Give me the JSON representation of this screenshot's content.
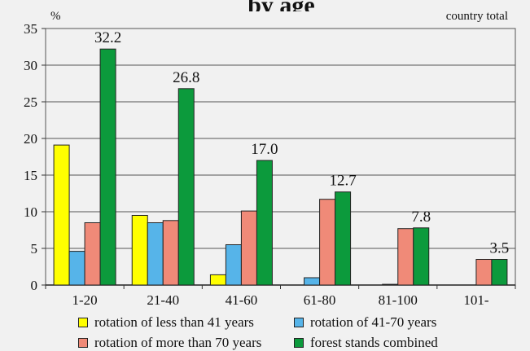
{
  "chart_data": {
    "type": "bar",
    "title_fragment": "by age",
    "y_unit": "%",
    "annotation": "country total",
    "categories": [
      "1-20",
      "21-40",
      "41-60",
      "61-80",
      "81-100",
      "101-"
    ],
    "ylim": [
      0,
      35
    ],
    "yticks": [
      0,
      5,
      10,
      15,
      20,
      25,
      30,
      35
    ],
    "grid": true,
    "legend_position": "bottom",
    "series": [
      {
        "name": "rotation of less than 41 years",
        "color": "#ffff00",
        "values": [
          19.1,
          9.5,
          1.4,
          0,
          0,
          0
        ]
      },
      {
        "name": "rotation of 41-70 years",
        "color": "#56b4e9",
        "values": [
          4.6,
          8.5,
          5.5,
          1.0,
          0.1,
          0
        ]
      },
      {
        "name": "rotation of more than 70 years",
        "color": "#f08a78",
        "values": [
          8.5,
          8.8,
          10.1,
          11.7,
          7.7,
          3.5
        ]
      },
      {
        "name": "forest stands combined",
        "color": "#0c9a3c",
        "values": [
          32.2,
          26.8,
          17.0,
          12.7,
          7.8,
          3.5
        ]
      }
    ],
    "data_labels": [
      "32.2",
      "26.8",
      "17.0",
      "12.7",
      "7.8",
      "3.5"
    ]
  }
}
